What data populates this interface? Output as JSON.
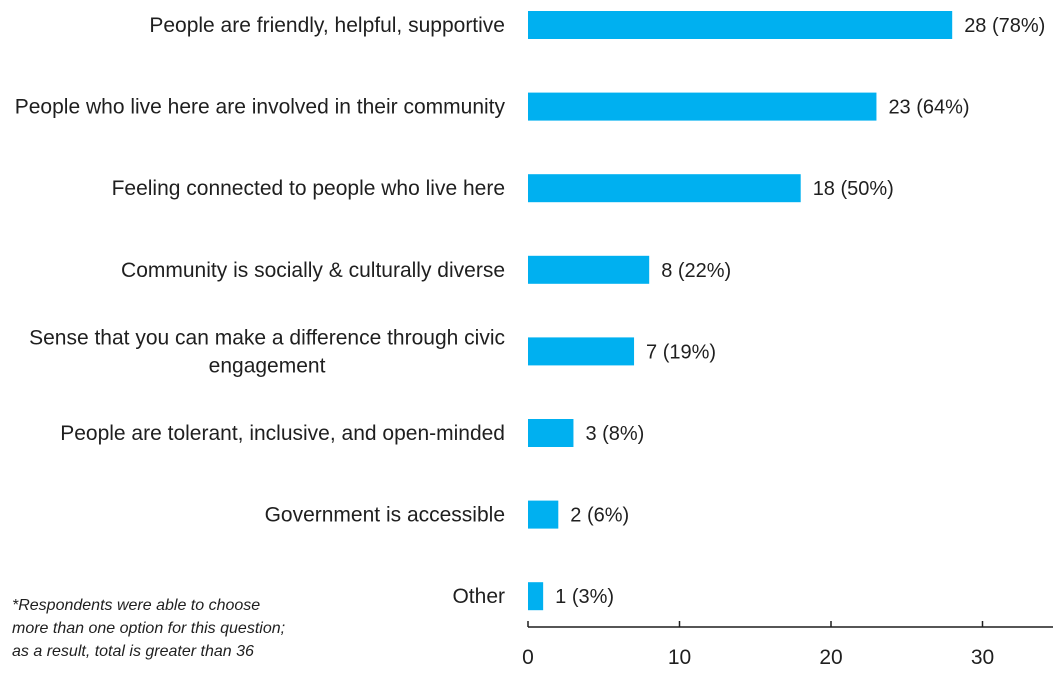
{
  "chart_data": {
    "type": "bar",
    "orientation": "horizontal",
    "categories": [
      "People are friendly, helpful, supportive",
      "People who live here are involved in their community",
      "Feeling connected to people who live here",
      "Community is socially & culturally diverse",
      "Sense that you can make a difference through civic engagement",
      "People are tolerant, inclusive, and open-minded",
      "Government is accessible",
      "Other"
    ],
    "values": [
      28,
      23,
      18,
      8,
      7,
      3,
      2,
      1
    ],
    "data_labels": [
      "28 (78%)",
      "23 (64%)",
      "18 (50%)",
      "8 (22%)",
      "7 (19%)",
      "3 (8%)",
      "2 (6%)",
      "1 (3%)"
    ],
    "xticks": [
      0,
      10,
      20,
      30
    ],
    "xlim": [
      0,
      35
    ],
    "bar_color": "#00b0f0",
    "grid": false,
    "legend": "none"
  },
  "footnote": "*Respondents were able to choose more than one option for this question; as a result, total is greater than 36"
}
